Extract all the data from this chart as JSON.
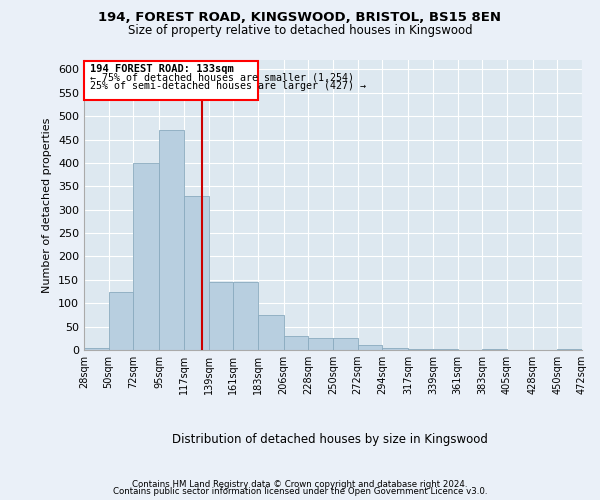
{
  "title1": "194, FOREST ROAD, KINGSWOOD, BRISTOL, BS15 8EN",
  "title2": "Size of property relative to detached houses in Kingswood",
  "xlabel": "Distribution of detached houses by size in Kingswood",
  "ylabel": "Number of detached properties",
  "footer1": "Contains HM Land Registry data © Crown copyright and database right 2024.",
  "footer2": "Contains public sector information licensed under the Open Government Licence v3.0.",
  "annotation_line1": "194 FOREST ROAD: 133sqm",
  "annotation_line2": "← 75% of detached houses are smaller (1,254)",
  "annotation_line3": "25% of semi-detached houses are larger (427) →",
  "bar_color": "#b8cfe0",
  "bar_edge_color": "#8aabbf",
  "vline_color": "#cc0000",
  "bg_color": "#eaf0f8",
  "plot_bg_color": "#dde8f0",
  "grid_color": "#ffffff",
  "bin_edges": [
    28,
    50,
    72,
    95,
    117,
    139,
    161,
    183,
    206,
    228,
    250,
    272,
    294,
    317,
    339,
    361,
    383,
    405,
    428,
    450,
    472
  ],
  "bin_labels": [
    "28sqm",
    "50sqm",
    "72sqm",
    "95sqm",
    "117sqm",
    "139sqm",
    "161sqm",
    "183sqm",
    "206sqm",
    "228sqm",
    "250sqm",
    "272sqm",
    "294sqm",
    "317sqm",
    "339sqm",
    "361sqm",
    "383sqm",
    "405sqm",
    "428sqm",
    "450sqm",
    "472sqm"
  ],
  "counts": [
    5,
    125,
    400,
    470,
    330,
    145,
    145,
    75,
    30,
    25,
    25,
    10,
    5,
    2,
    2,
    0,
    2,
    0,
    0,
    2
  ],
  "vline_x": 133,
  "ylim": [
    0,
    620
  ],
  "yticks": [
    0,
    50,
    100,
    150,
    200,
    250,
    300,
    350,
    400,
    450,
    500,
    550,
    600
  ]
}
